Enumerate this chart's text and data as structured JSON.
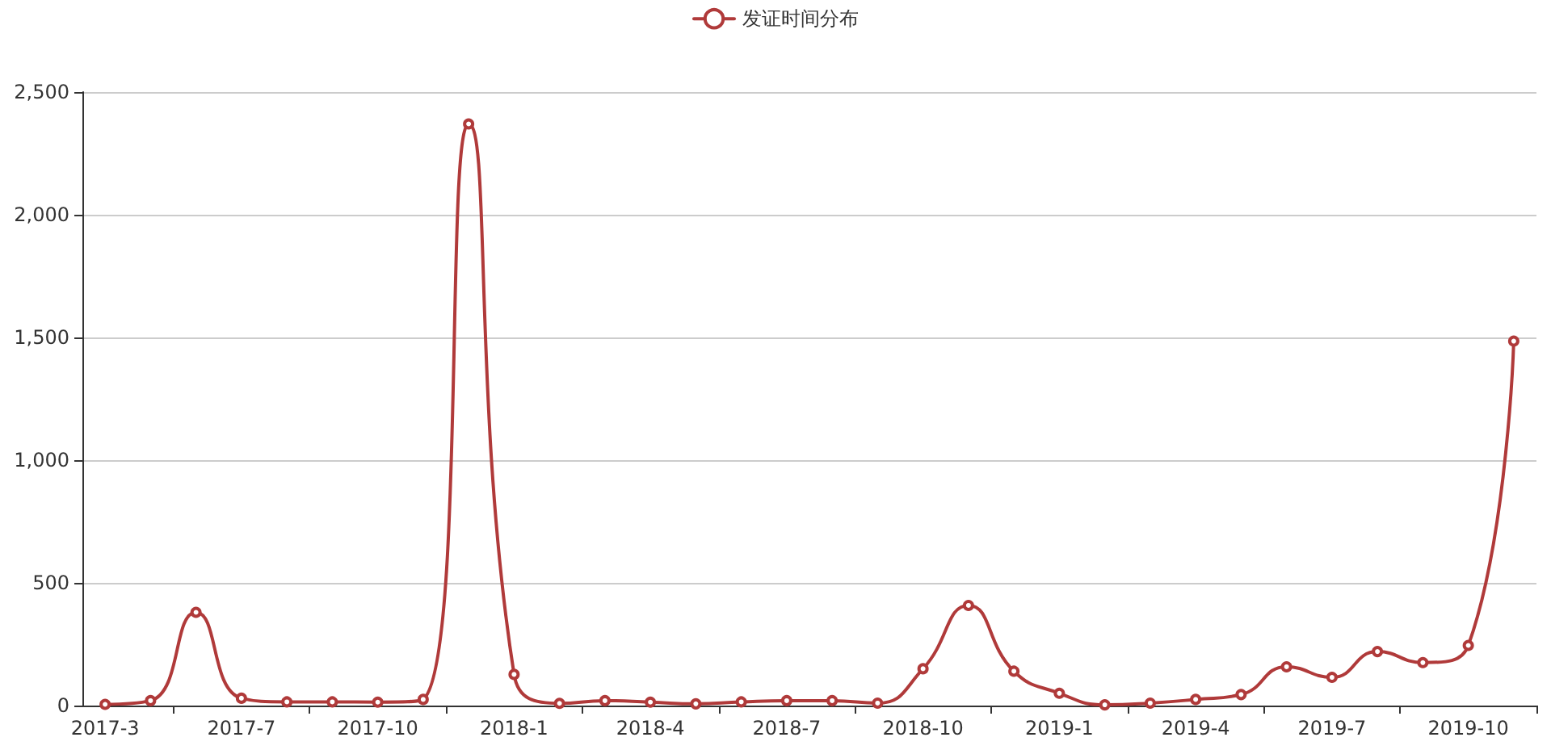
{
  "chart_data": {
    "type": "line",
    "categories": [
      "2017-3",
      null,
      null,
      "2017-7",
      null,
      null,
      "2017-10",
      null,
      null,
      "2018-1",
      null,
      null,
      "2018-4",
      null,
      null,
      "2018-7",
      null,
      null,
      "2018-10",
      null,
      null,
      "2019-1",
      null,
      null,
      "2019-4",
      null,
      null,
      "2019-7",
      null,
      null,
      "2019-10",
      null
    ],
    "series": [
      {
        "name": "发证时间分布",
        "color": "#b03a3a",
        "values": [
          5,
          20,
          380,
          30,
          15,
          15,
          14,
          25,
          2370,
          127,
          9,
          20,
          14,
          7,
          15,
          20,
          20,
          10,
          150,
          408,
          140,
          50,
          3,
          10,
          25,
          45,
          158,
          115,
          220,
          175,
          245,
          1485
        ]
      }
    ],
    "ylim": [
      0,
      2500
    ],
    "yticks": [
      {
        "value": 0,
        "label": "0"
      },
      {
        "value": 500,
        "label": "500"
      },
      {
        "value": 1000,
        "label": "1,000"
      },
      {
        "value": 1500,
        "label": "1,500"
      },
      {
        "value": 2000,
        "label": "2,000"
      },
      {
        "value": 2500,
        "label": "2,500"
      }
    ],
    "grid": "y",
    "legend": "top",
    "marker": "circle",
    "line_style": "solid"
  }
}
